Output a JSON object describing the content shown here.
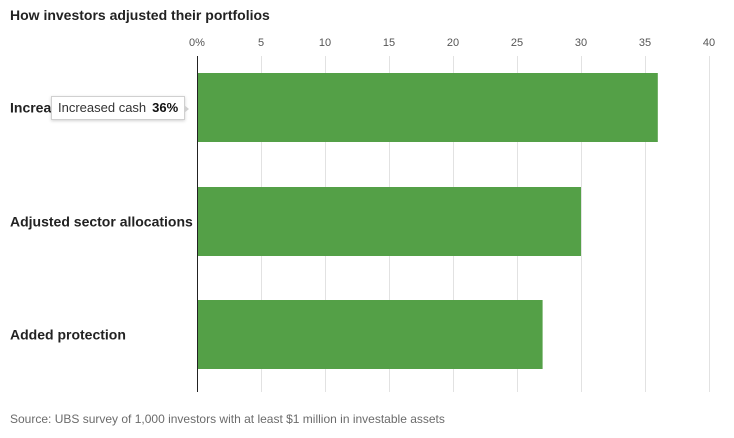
{
  "chart": {
    "title": "How investors adjusted their portfolios",
    "source": "Source: UBS survey of 1,000 investors with at least $1 million in investable assets"
  },
  "tooltip": {
    "label": "Increased cash",
    "value": "36%"
  },
  "colors": {
    "bar": "#54a047",
    "grid": "#e2e2e2",
    "axis": "#222222"
  },
  "chart_data": {
    "type": "bar",
    "orientation": "horizontal",
    "title": "How investors adjusted their portfolios",
    "categories": [
      "Increased cash",
      "Adjusted sector allocations",
      "Added protection"
    ],
    "category_labels_shown": [
      "Increa",
      "Adjusted sector allocations",
      "Added protection"
    ],
    "values": [
      36,
      30,
      27
    ],
    "xlim": [
      0,
      40
    ],
    "ticks": [
      0,
      5,
      10,
      15,
      20,
      25,
      30,
      35,
      40
    ],
    "tick_labels": [
      "0%",
      "5",
      "10",
      "15",
      "20",
      "25",
      "30",
      "35",
      "40"
    ],
    "axis_position": "top",
    "grid": true,
    "legend": "none"
  }
}
